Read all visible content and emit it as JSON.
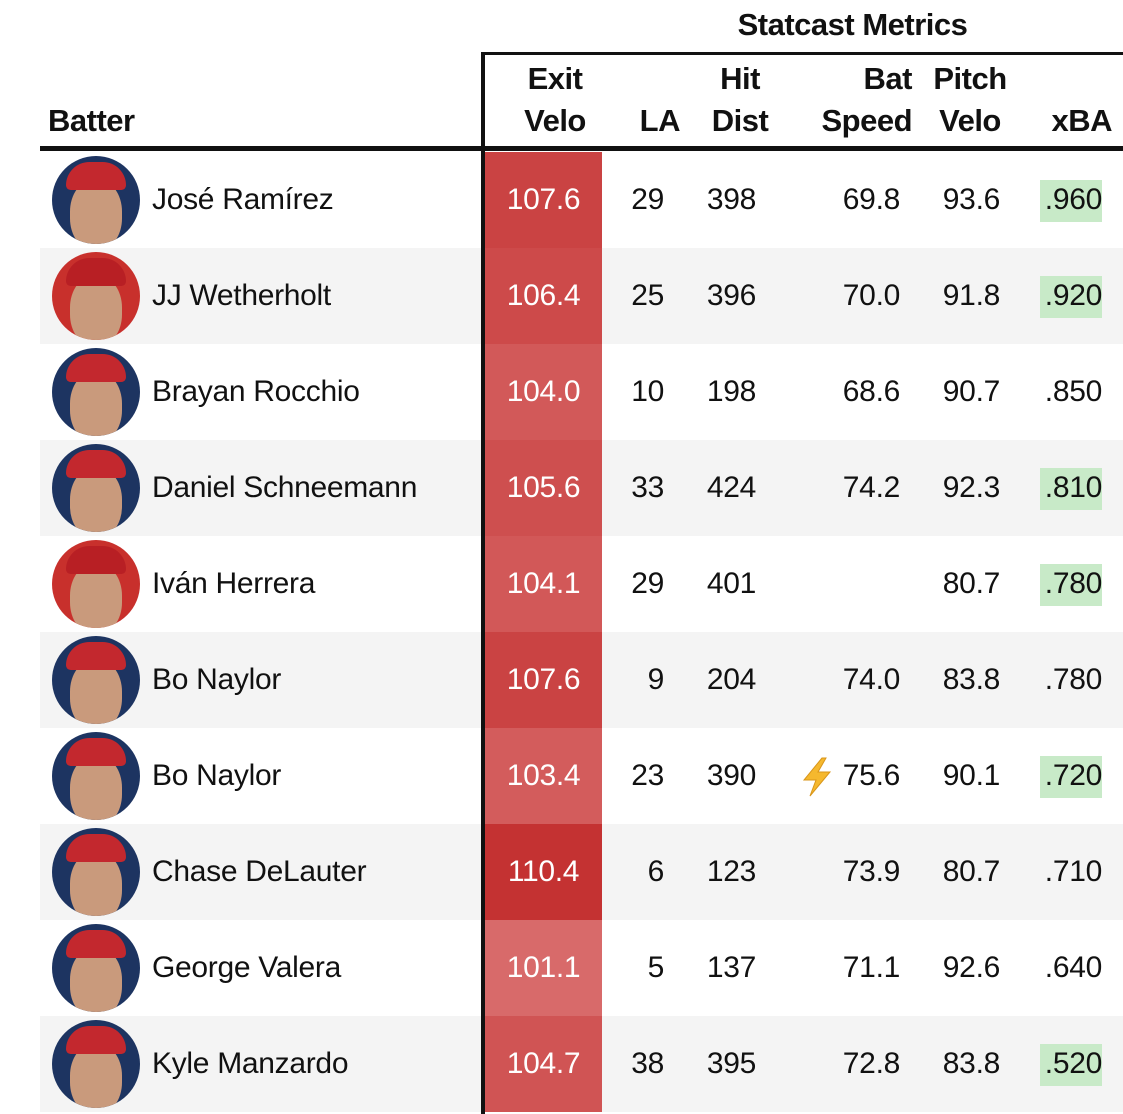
{
  "header": {
    "group": "Statcast Metrics",
    "columns": [
      "Batter",
      "Exit Velo",
      "LA",
      "Hit Dist",
      "Bat Speed",
      "Pitch Velo",
      "xBA"
    ]
  },
  "table": {
    "rows": [
      [
        "José Ramírez",
        "107.6",
        "29",
        "398",
        "69.8",
        "93.6",
        ".960"
      ],
      [
        "JJ Wetherholt",
        "106.4",
        "25",
        "396",
        "70.0",
        "91.8",
        ".920"
      ],
      [
        "Brayan Rocchio",
        "104.0",
        "10",
        "198",
        "68.6",
        "90.7",
        ".850"
      ],
      [
        "Daniel Schneemann",
        "105.6",
        "33",
        "424",
        "74.2",
        "92.3",
        ".810"
      ],
      [
        "Iván Herrera",
        "104.1",
        "29",
        "401",
        null,
        "80.7",
        ".780"
      ],
      [
        "Bo Naylor",
        "107.6",
        "9",
        "204",
        "74.0",
        "83.8",
        ".780"
      ],
      [
        "Bo Naylor",
        "103.4",
        "23",
        "390",
        "75.6",
        "90.1",
        ".720"
      ],
      [
        "Chase DeLauter",
        "110.4",
        "6",
        "123",
        "73.9",
        "80.7",
        ".710"
      ],
      [
        "George Valera",
        "101.1",
        "5",
        "137",
        "71.1",
        "92.6",
        ".640"
      ],
      [
        "Kyle Manzardo",
        "104.7",
        "38",
        "395",
        "72.8",
        "83.8",
        ".520"
      ]
    ],
    "xba_highlight_rows": [
      0,
      1,
      3,
      4,
      6,
      9
    ]
  }
}
